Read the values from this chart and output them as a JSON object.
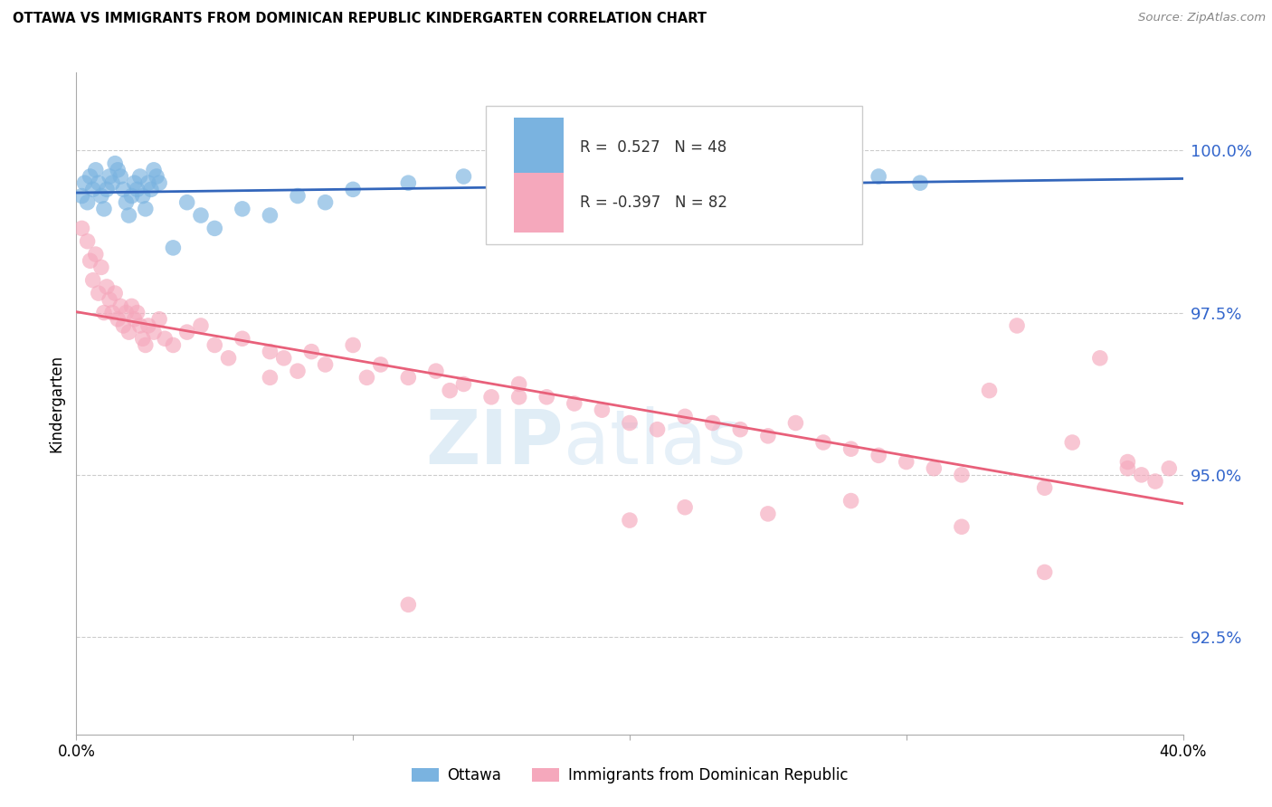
{
  "title": "OTTAWA VS IMMIGRANTS FROM DOMINICAN REPUBLIC KINDERGARTEN CORRELATION CHART",
  "source": "Source: ZipAtlas.com",
  "ylabel": "Kindergarten",
  "xlim": [
    0.0,
    40.0
  ],
  "ylim": [
    91.0,
    101.2
  ],
  "yticks": [
    92.5,
    95.0,
    97.5,
    100.0
  ],
  "xticks": [
    0.0,
    10.0,
    20.0,
    30.0,
    40.0
  ],
  "xtick_labels": [
    "0.0%",
    "",
    "",
    "",
    "40.0%"
  ],
  "blue_R": 0.527,
  "blue_N": 48,
  "pink_R": -0.397,
  "pink_N": 82,
  "blue_color": "#7ab3e0",
  "pink_color": "#f5a8bc",
  "blue_line_color": "#3366bb",
  "pink_line_color": "#e8607a",
  "legend_label_blue": "Ottawa",
  "legend_label_pink": "Immigrants from Dominican Republic",
  "watermark_zip": "ZIP",
  "watermark_atlas": "atlas",
  "blue_x": [
    0.2,
    0.3,
    0.4,
    0.5,
    0.6,
    0.7,
    0.8,
    0.9,
    1.0,
    1.1,
    1.2,
    1.3,
    1.4,
    1.5,
    1.6,
    1.7,
    1.8,
    1.9,
    2.0,
    2.1,
    2.2,
    2.3,
    2.4,
    2.5,
    2.6,
    2.7,
    2.8,
    2.9,
    3.0,
    3.5,
    4.0,
    4.5,
    5.0,
    6.0,
    7.0,
    8.0,
    9.0,
    10.0,
    12.0,
    14.0,
    17.0,
    19.0,
    21.0,
    24.0,
    26.0,
    28.0,
    29.0,
    30.5
  ],
  "blue_y": [
    99.3,
    99.5,
    99.2,
    99.6,
    99.4,
    99.7,
    99.5,
    99.3,
    99.1,
    99.4,
    99.6,
    99.5,
    99.8,
    99.7,
    99.6,
    99.4,
    99.2,
    99.0,
    99.3,
    99.5,
    99.4,
    99.6,
    99.3,
    99.1,
    99.5,
    99.4,
    99.7,
    99.6,
    99.5,
    98.5,
    99.2,
    99.0,
    98.8,
    99.1,
    99.0,
    99.3,
    99.2,
    99.4,
    99.5,
    99.6,
    99.5,
    99.4,
    99.6,
    99.7,
    99.5,
    99.4,
    99.6,
    99.5
  ],
  "pink_x": [
    0.2,
    0.4,
    0.5,
    0.6,
    0.7,
    0.8,
    0.9,
    1.0,
    1.1,
    1.2,
    1.3,
    1.4,
    1.5,
    1.6,
    1.7,
    1.8,
    1.9,
    2.0,
    2.1,
    2.2,
    2.3,
    2.4,
    2.5,
    2.6,
    2.8,
    3.0,
    3.2,
    3.5,
    4.0,
    4.5,
    5.0,
    5.5,
    6.0,
    7.0,
    7.5,
    8.0,
    8.5,
    9.0,
    10.0,
    10.5,
    11.0,
    12.0,
    13.0,
    13.5,
    14.0,
    15.0,
    16.0,
    17.0,
    18.0,
    19.0,
    20.0,
    21.0,
    22.0,
    23.0,
    24.0,
    25.0,
    26.0,
    27.0,
    28.0,
    29.0,
    30.0,
    31.0,
    32.0,
    33.0,
    34.0,
    35.0,
    36.0,
    37.0,
    38.0,
    38.5,
    39.0,
    39.5,
    16.0,
    20.0,
    22.0,
    25.0,
    28.0,
    32.0,
    35.0,
    38.0,
    7.0,
    12.0
  ],
  "pink_y": [
    98.8,
    98.6,
    98.3,
    98.0,
    98.4,
    97.8,
    98.2,
    97.5,
    97.9,
    97.7,
    97.5,
    97.8,
    97.4,
    97.6,
    97.3,
    97.5,
    97.2,
    97.6,
    97.4,
    97.5,
    97.3,
    97.1,
    97.0,
    97.3,
    97.2,
    97.4,
    97.1,
    97.0,
    97.2,
    97.3,
    97.0,
    96.8,
    97.1,
    96.9,
    96.8,
    96.6,
    96.9,
    96.7,
    97.0,
    96.5,
    96.7,
    96.5,
    96.6,
    96.3,
    96.4,
    96.2,
    96.4,
    96.2,
    96.1,
    96.0,
    95.8,
    95.7,
    95.9,
    95.8,
    95.7,
    95.6,
    95.8,
    95.5,
    95.4,
    95.3,
    95.2,
    95.1,
    95.0,
    96.3,
    97.3,
    94.8,
    95.5,
    96.8,
    95.2,
    95.0,
    94.9,
    95.1,
    96.2,
    94.3,
    94.5,
    94.4,
    94.6,
    94.2,
    93.5,
    95.1,
    96.5,
    93.0
  ]
}
